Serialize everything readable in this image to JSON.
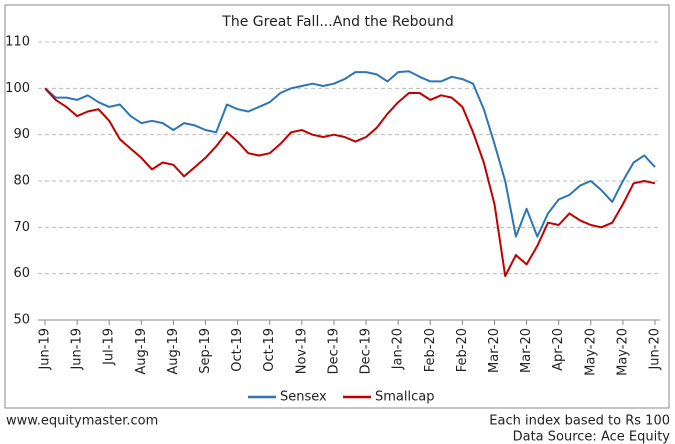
{
  "chart_data": {
    "type": "line",
    "title": "The Great Fall...And the Rebound",
    "categories": [
      "Jun-19",
      null,
      null,
      "Jun-19",
      null,
      null,
      "Jul-19",
      null,
      null,
      "Aug-19",
      null,
      null,
      "Aug-19",
      null,
      null,
      "Sep-19",
      null,
      null,
      "Oct-19",
      null,
      null,
      "Oct-19",
      null,
      null,
      "Nov-19",
      null,
      null,
      "Dec-19",
      null,
      null,
      "Dec-19",
      null,
      null,
      "Jan-20",
      null,
      null,
      "Feb-20",
      null,
      null,
      "Feb-20",
      null,
      null,
      "Mar-20",
      null,
      null,
      "Mar-20",
      null,
      null,
      "Apr-20",
      null,
      null,
      "May-20",
      null,
      null,
      "May-20",
      null,
      null,
      "Jun-20"
    ],
    "series": [
      {
        "name": "Sensex",
        "color": "#2e75b6",
        "values": [
          100,
          98,
          98,
          97.5,
          98.5,
          97,
          96,
          96.5,
          94,
          92.5,
          93,
          92.5,
          91,
          92.5,
          92,
          91,
          90.5,
          96.5,
          95.5,
          95,
          96,
          97,
          99,
          100,
          100.5,
          101,
          100.5,
          101,
          102,
          103.5,
          103.5,
          103,
          101.5,
          103.5,
          103.7,
          102.5,
          101.5,
          101.5,
          102.5,
          102,
          101,
          95.5,
          88,
          80,
          68,
          74,
          68,
          73,
          76,
          77,
          79,
          80,
          78,
          75.5,
          80,
          84,
          85.5,
          83
        ]
      },
      {
        "name": "Smallcap",
        "color": "#c00000",
        "values": [
          100,
          97.5,
          96,
          94,
          95,
          95.5,
          93,
          89,
          87,
          85,
          82.5,
          84,
          83.5,
          81,
          83,
          85,
          87.5,
          90.5,
          88.5,
          86,
          85.5,
          86,
          88,
          90.5,
          91,
          90,
          89.5,
          90,
          89.5,
          88.5,
          89.5,
          91.5,
          94.5,
          97,
          99,
          99,
          97.5,
          98.5,
          98,
          96,
          90.5,
          84,
          75,
          59.5,
          64,
          62,
          66,
          71,
          70.5,
          73,
          71.5,
          70.5,
          70,
          71,
          75,
          79.5,
          80,
          79.5
        ]
      }
    ],
    "ylim": [
      50,
      110
    ],
    "yticks": [
      50,
      60,
      70,
      80,
      90,
      100,
      110
    ],
    "grid": true,
    "legend": "bottom",
    "website": "www.equitymaster.com",
    "note": "Each index based to Rs 100",
    "source": "Data Source: Ace Equity"
  }
}
